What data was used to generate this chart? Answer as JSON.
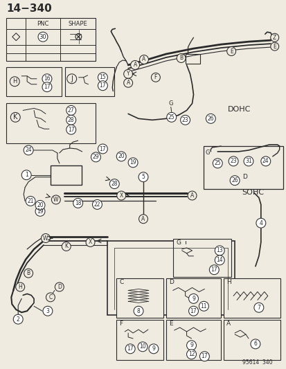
{
  "title": "14−340",
  "bg_color": "#f0ebe0",
  "line_color": "#2a2a2a",
  "dohc_label": "DOHC",
  "sohc_label": "SOHC",
  "part_number": "95614  340",
  "figsize": [
    4.14,
    5.33
  ],
  "dpi": 100,
  "xlim": [
    0,
    414
  ],
  "ylim": [
    533,
    0
  ]
}
